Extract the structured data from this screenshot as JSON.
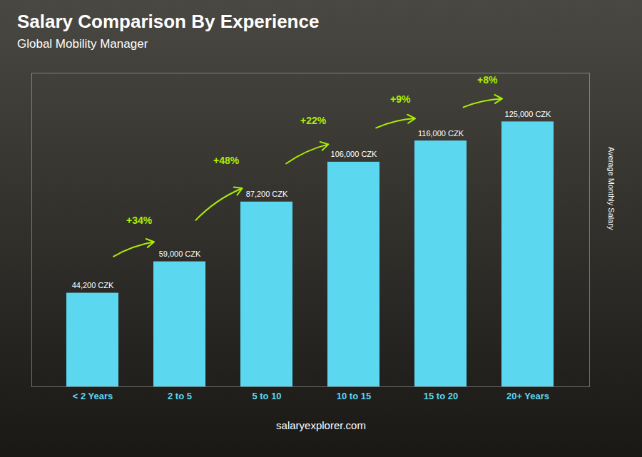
{
  "chart_data": {
    "type": "bar",
    "title": "Salary Comparison By Experience",
    "subtitle": "Global Mobility Manager",
    "caption": "salaryexplorer.com",
    "categories": [
      "< 2 Years",
      "2 to 5",
      "5 to 10",
      "10 to 15",
      "15 to 20",
      "20+ Years"
    ],
    "values": [
      44200,
      59000,
      87200,
      106000,
      116000,
      125000
    ],
    "value_labels": [
      "44,200 CZK",
      "59,000 CZK",
      "87,200 CZK",
      "106,000 CZK",
      "116,000 CZK",
      "125,000 CZK"
    ],
    "data_labels": true,
    "color": "#5bd8f0",
    "ylabel": "Average Monthly Salary",
    "ylim": [
      0,
      148000
    ],
    "tick_labels": "x",
    "grid": false,
    "annotations": [
      {
        "text": "+34%",
        "from": "< 2 Years",
        "to": "2 to 5",
        "color": "#aaee00"
      },
      {
        "text": "+48%",
        "from": "2 to 5",
        "to": "5 to 10",
        "color": "#aaee00"
      },
      {
        "text": "+22%",
        "from": "5 to 10",
        "to": "10 to 15",
        "color": "#aaee00"
      },
      {
        "text": "+9%",
        "from": "10 to 15",
        "to": "15 to 20",
        "color": "#aaee00"
      },
      {
        "text": "+8%",
        "from": "15 to 20",
        "to": "20+ Years",
        "color": "#aaee00"
      }
    ]
  }
}
